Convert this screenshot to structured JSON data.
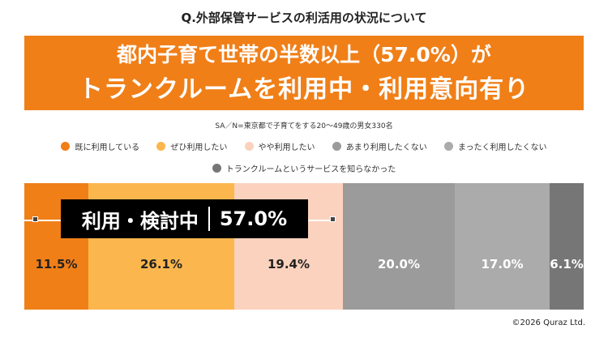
{
  "title": "Q.外部保管サービスの利活用の状況について",
  "banner": {
    "line1": "都内子育て世帯の半数以上（57.0%）が",
    "line2": "トランクルームを利用中・利用意向有り"
  },
  "note": "SA／N=東京都で子育てをする20～49歳の男女330名",
  "callout": {
    "label": "利用・検討中",
    "value": "57.0%"
  },
  "copyright": "©2026 Quraz Ltd.",
  "chart_data": {
    "type": "bar",
    "orientation": "horizontal-stacked-100",
    "categories": [
      "既に利用している",
      "ぜひ利用したい",
      "やや利用したい",
      "あまり利用したくない",
      "まったく利用したくない",
      "トランクルームというサービスを知らなかった"
    ],
    "values": [
      11.5,
      26.1,
      19.4,
      20.0,
      17.0,
      6.1
    ],
    "labels": [
      "11.5%",
      "26.1%",
      "19.4%",
      "20.0%",
      "17.0%",
      "6.1%"
    ],
    "colors": [
      "#f07f18",
      "#fbb74e",
      "#fbd2bd",
      "#9b9b9b",
      "#ababab",
      "#767676"
    ],
    "label_colors": [
      "#222222",
      "#222222",
      "#222222",
      "#ffffff",
      "#ffffff",
      "#ffffff"
    ],
    "legend": "top",
    "xlim": [
      0,
      100
    ]
  }
}
